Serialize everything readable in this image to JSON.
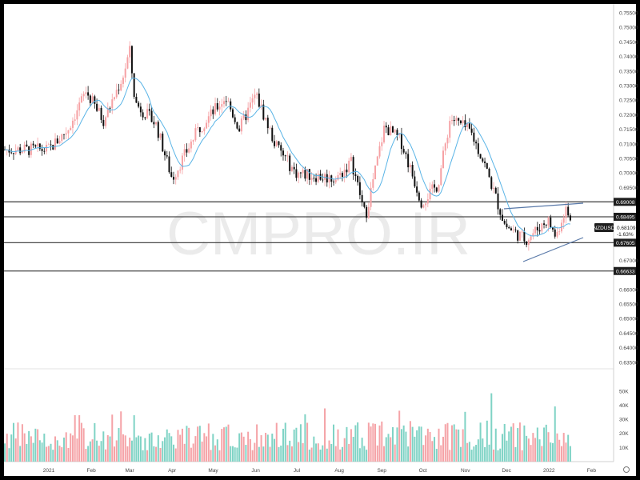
{
  "watermark": "CMPRO.IR",
  "symbol_tag": {
    "symbol": "NZDUSD",
    "price": "0.68109",
    "change": "-1.63%"
  },
  "colors": {
    "up": "#f6a1a4",
    "down": "#0f0f0f",
    "ma": "#5ab4e6",
    "volume_up": "#7fd3c5",
    "volume_down": "#f5a3a7",
    "level_line": "#4a4a4a",
    "trend_line": "#5878a8",
    "tag_bg": "#1e1e1e"
  },
  "chart_data": [
    {
      "type": "candlestick",
      "title": "",
      "x_ticks": [
        "2021",
        "Feb",
        "Mar",
        "Apr",
        "May",
        "Jun",
        "Jul",
        "Aug",
        "Sep",
        "Oct",
        "Nov",
        "Dec",
        "2022",
        "Feb"
      ],
      "y_ticks": [
        "0.75500",
        "0.75000",
        "0.74500",
        "0.74000",
        "0.73500",
        "0.73000",
        "0.72500",
        "0.72000",
        "0.71500",
        "0.71000",
        "0.70500",
        "0.70000",
        "0.69500",
        "0.67000",
        "0.66000",
        "0.65500",
        "0.65000",
        "0.64500",
        "0.64000",
        "0.63500"
      ],
      "ylim": [
        0.6316,
        0.7565
      ],
      "moving_average": true,
      "price_levels": [
        {
          "value": 0.69008,
          "label": "0.69008"
        },
        {
          "value": 0.68495,
          "label": "0.68495"
        },
        {
          "value": 0.67605,
          "label": "0.67605"
        },
        {
          "value": 0.66633,
          "label": "0.66633"
        }
      ],
      "close_path": [
        {
          "date": "2021-01-01",
          "close": 0.708
        },
        {
          "date": "2021-01-15",
          "close": 0.715
        },
        {
          "date": "2021-01-28",
          "close": 0.728
        },
        {
          "date": "2021-02-10",
          "close": 0.718
        },
        {
          "date": "2021-02-24",
          "close": 0.733
        },
        {
          "date": "2021-03-01",
          "close": 0.742
        },
        {
          "date": "2021-03-05",
          "close": 0.724
        },
        {
          "date": "2021-03-20",
          "close": 0.717
        },
        {
          "date": "2021-04-01",
          "close": 0.698
        },
        {
          "date": "2021-04-20",
          "close": 0.715
        },
        {
          "date": "2021-05-10",
          "close": 0.726
        },
        {
          "date": "2021-05-20",
          "close": 0.715
        },
        {
          "date": "2021-06-01",
          "close": 0.727
        },
        {
          "date": "2021-06-15",
          "close": 0.71
        },
        {
          "date": "2021-06-30",
          "close": 0.7
        },
        {
          "date": "2021-07-15",
          "close": 0.699
        },
        {
          "date": "2021-07-30",
          "close": 0.698
        },
        {
          "date": "2021-08-10",
          "close": 0.704
        },
        {
          "date": "2021-08-20",
          "close": 0.685
        },
        {
          "date": "2021-09-03",
          "close": 0.716
        },
        {
          "date": "2021-09-15",
          "close": 0.711
        },
        {
          "date": "2021-09-30",
          "close": 0.69
        },
        {
          "date": "2021-10-12",
          "close": 0.696
        },
        {
          "date": "2021-10-21",
          "close": 0.719
        },
        {
          "date": "2021-11-05",
          "close": 0.714
        },
        {
          "date": "2021-11-15",
          "close": 0.703
        },
        {
          "date": "2021-11-30",
          "close": 0.682
        },
        {
          "date": "2021-12-15",
          "close": 0.677
        },
        {
          "date": "2021-12-31",
          "close": 0.684
        },
        {
          "date": "2022-01-06",
          "close": 0.678
        },
        {
          "date": "2022-01-13",
          "close": 0.688
        },
        {
          "date": "2022-01-18",
          "close": 0.6811
        }
      ],
      "volume_ticks": [
        "50K",
        "40K",
        "30K",
        "20K",
        "10K"
      ],
      "volume_max": 55000
    }
  ]
}
